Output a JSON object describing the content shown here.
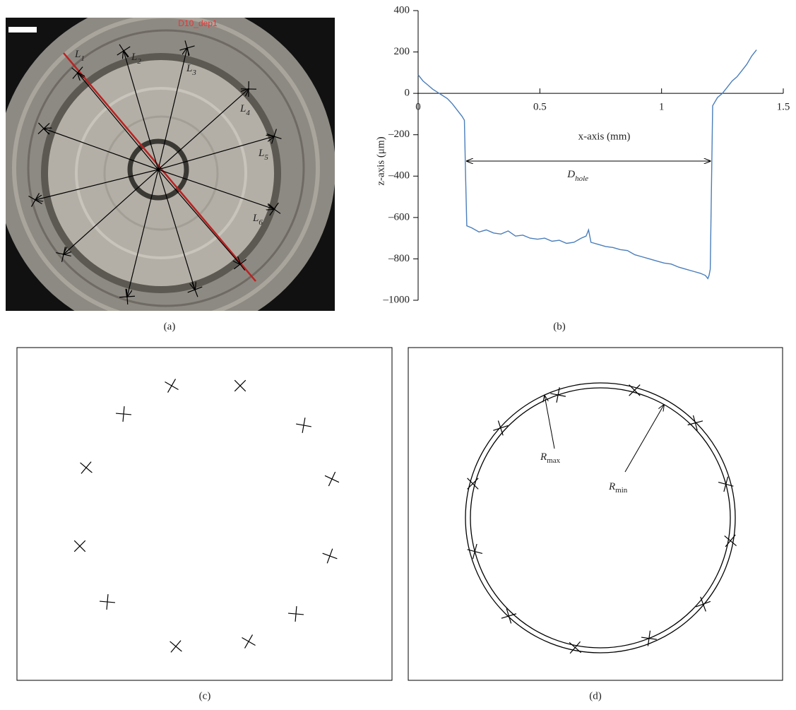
{
  "panel_labels": [
    "(a)",
    "(b)",
    "(c)",
    "(d)"
  ],
  "photo": {
    "title": "D10_dep1",
    "line_labels": [
      {
        "base": "L",
        "sub": "1"
      },
      {
        "base": "L",
        "sub": "2"
      },
      {
        "base": "L",
        "sub": "3"
      },
      {
        "base": "L",
        "sub": "4"
      },
      {
        "base": "L",
        "sub": "5"
      },
      {
        "base": "L",
        "sub": "6"
      }
    ]
  },
  "chart_data": {
    "type": "line",
    "x_label": "x-axis (mm)",
    "y_label": "z-axis (μm)",
    "annotation": {
      "base": "D",
      "sub": "hole"
    },
    "x": [
      0,
      0.02,
      0.04,
      0.06,
      0.08,
      0.1,
      0.12,
      0.14,
      0.16,
      0.18,
      0.19,
      0.195,
      0.2,
      0.22,
      0.25,
      0.28,
      0.31,
      0.34,
      0.37,
      0.4,
      0.43,
      0.46,
      0.49,
      0.52,
      0.55,
      0.58,
      0.61,
      0.64,
      0.67,
      0.69,
      0.7,
      0.71,
      0.74,
      0.77,
      0.8,
      0.83,
      0.86,
      0.89,
      0.92,
      0.95,
      0.98,
      1.01,
      1.04,
      1.07,
      1.1,
      1.13,
      1.16,
      1.18,
      1.19,
      1.195,
      1.2,
      1.21,
      1.23,
      1.25,
      1.27,
      1.29,
      1.31,
      1.33,
      1.35,
      1.37,
      1.39
    ],
    "values": [
      90,
      60,
      40,
      20,
      5,
      -10,
      -25,
      -50,
      -80,
      -110,
      -130,
      -400,
      -640,
      -650,
      -670,
      -660,
      -675,
      -680,
      -665,
      -690,
      -685,
      -700,
      -705,
      -700,
      -715,
      -710,
      -725,
      -720,
      -700,
      -690,
      -660,
      -720,
      -730,
      -740,
      -745,
      -755,
      -760,
      -780,
      -790,
      -800,
      -810,
      -820,
      -825,
      -840,
      -850,
      -860,
      -870,
      -880,
      -895,
      -880,
      -850,
      -60,
      -20,
      0,
      30,
      60,
      80,
      110,
      140,
      180,
      210
    ],
    "color": "#4a7ebb",
    "xlim": [
      0,
      1.5
    ],
    "ylim": [
      -1000,
      400
    ],
    "xticks": [
      0,
      0.5,
      1,
      1.5
    ],
    "yticks": [
      {
        "value": -1000,
        "label": "–1000"
      },
      {
        "value": -800,
        "label": "–800"
      },
      {
        "value": -600,
        "label": "–600"
      },
      {
        "value": -400,
        "label": "–400"
      },
      {
        "value": -200,
        "label": "–200"
      },
      0,
      200,
      400
    ]
  },
  "radii": {
    "max": {
      "base": "R",
      "sub": "max"
    },
    "min": {
      "base": "R",
      "sub": "min"
    }
  }
}
